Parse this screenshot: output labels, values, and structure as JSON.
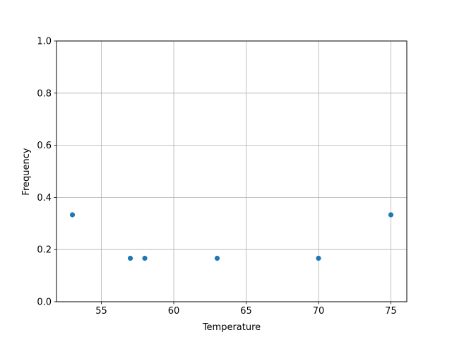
{
  "chart_data": {
    "type": "scatter",
    "title": "",
    "xlabel": "Temperature",
    "ylabel": "Frequency",
    "xlim": [
      51.9,
      76.1
    ],
    "ylim": [
      0,
      1.0
    ],
    "xticks": [
      55,
      60,
      65,
      70,
      75
    ],
    "xtick_labels": [
      "55",
      "60",
      "65",
      "70",
      "75"
    ],
    "yticks": [
      0,
      0.2,
      0.4,
      0.6,
      0.8,
      1.0
    ],
    "ytick_labels": [
      "0.0",
      "0.2",
      "0.4",
      "0.6",
      "0.8",
      "1.0"
    ],
    "grid": true,
    "color": "#1f77b4",
    "points": [
      {
        "x": 53,
        "y": 0.3333
      },
      {
        "x": 57,
        "y": 0.1667
      },
      {
        "x": 58,
        "y": 0.1667
      },
      {
        "x": 63,
        "y": 0.1667
      },
      {
        "x": 70,
        "y": 0.1667
      },
      {
        "x": 75,
        "y": 0.3333
      }
    ]
  }
}
